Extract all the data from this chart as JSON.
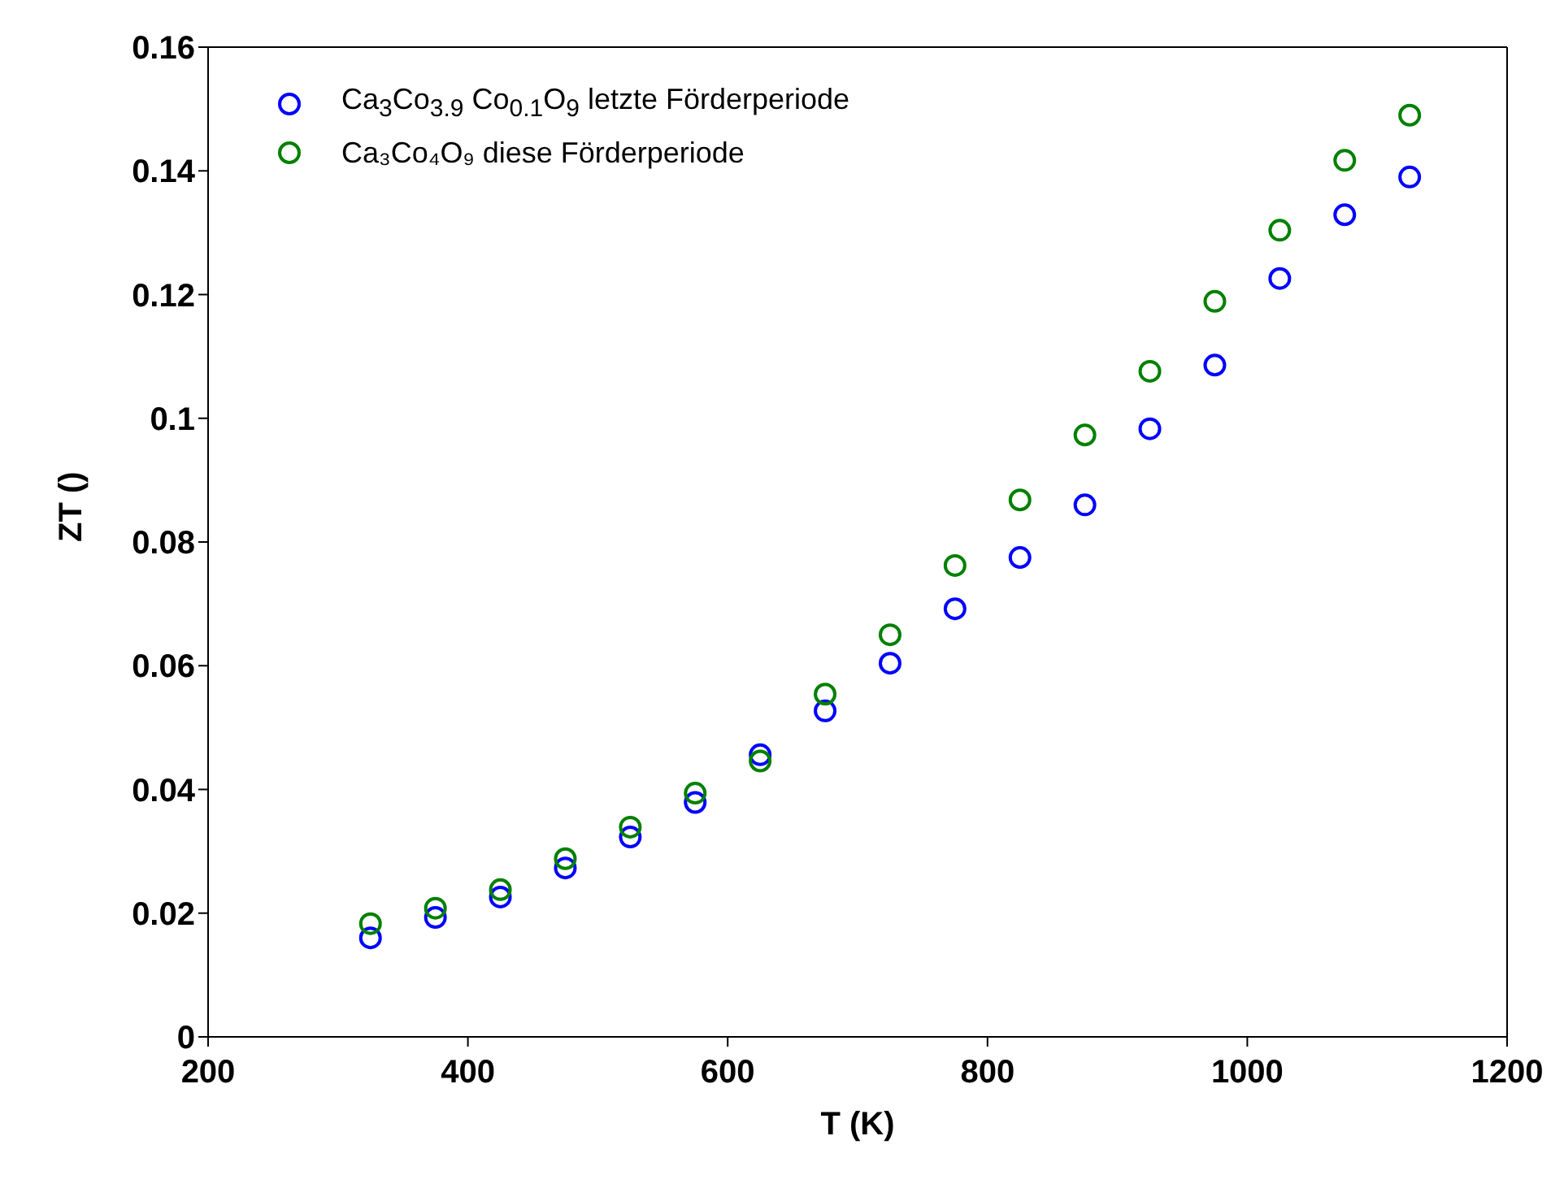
{
  "chart_data": {
    "type": "scatter",
    "xlabel": "T (K)",
    "ylabel": "ZT ()",
    "x": [
      325,
      375,
      425,
      475,
      525,
      575,
      625,
      675,
      725,
      775,
      825,
      875,
      925,
      975,
      1025,
      1075,
      1125
    ],
    "series": [
      {
        "name": "Ca$_{3}$Co$_{3.9}$ Co$_{0.1}$O$_{9}$ letzte Förderperiode",
        "color": "#0000ff",
        "values": [
          0.016,
          0.0193,
          0.0226,
          0.0273,
          0.0323,
          0.0379,
          0.0456,
          0.0527,
          0.0604,
          0.0692,
          0.0775,
          0.086,
          0.0983,
          0.1086,
          0.1226,
          0.1329,
          0.139
        ]
      },
      {
        "name": "Ca₃Co₄O₉ diese Förderperiode",
        "color": "#008000",
        "values": [
          0.0183,
          0.0208,
          0.0238,
          0.0288,
          0.0339,
          0.0394,
          0.0446,
          0.0554,
          0.065,
          0.0762,
          0.0868,
          0.0973,
          0.1076,
          0.1189,
          0.1304,
          0.1417,
          0.149
        ]
      }
    ],
    "xlim": [
      200,
      1200
    ],
    "xticks": [
      200,
      400,
      600,
      800,
      1000,
      1200
    ],
    "ylim": [
      0,
      0.16
    ],
    "yticks": [
      0,
      0.02,
      0.04,
      0.06,
      0.08,
      0.1,
      0.12,
      0.14,
      0.16
    ],
    "marker": "circle",
    "legend": "top left",
    "grid": false
  }
}
